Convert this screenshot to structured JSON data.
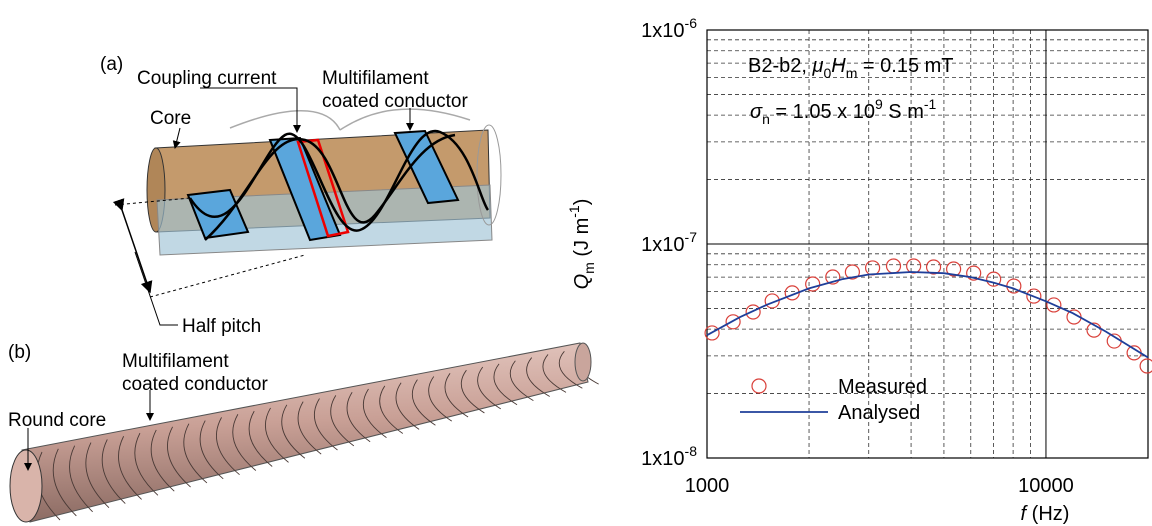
{
  "diagram": {
    "panel_a": {
      "label": "(a)",
      "coupling_current": "Coupling current",
      "conductor": [
        "Multifilament",
        "coated conductor"
      ],
      "core": "Core",
      "half_pitch": "Half pitch"
    },
    "panel_b": {
      "label": "(b)",
      "conductor": [
        "Multifilament",
        "coated conductor"
      ],
      "core": "Round core"
    }
  },
  "chart_data": {
    "type": "line",
    "x_label_parts": [
      "f",
      " (Hz)"
    ],
    "y_label_parts": [
      "Q",
      "m",
      " (J m",
      "-1",
      ")"
    ],
    "annotations": [
      [
        "B2-b2, ",
        "μ",
        "0",
        "H",
        "m",
        " = 0.15 mT"
      ],
      [
        "σ",
        "n",
        " = 1.05 x 10",
        "9",
        " S m",
        "-1"
      ]
    ],
    "log_x": true,
    "log_y": true,
    "grid": true,
    "xlim": [
      1000,
      20000
    ],
    "ylim": [
      1e-08,
      1e-06
    ],
    "xticks": [
      1000,
      10000
    ],
    "yticks": [
      {
        "value": 1e-08,
        "label": "1x10-8"
      },
      {
        "value": 1e-07,
        "label": "1x10-7"
      },
      {
        "value": 1e-06,
        "label": "1x10-6"
      }
    ],
    "x_minor_ticks": [
      2000,
      3000,
      4000,
      5000,
      6000,
      7000,
      8000,
      9000
    ],
    "y_minor_ticks": [
      2e-08,
      3e-08,
      4e-08,
      5e-08,
      6e-08,
      7e-08,
      8e-08,
      9e-08,
      2e-07,
      3e-07,
      4e-07,
      5e-07,
      6e-07,
      7e-07,
      8e-07,
      9e-07
    ],
    "series": [
      {
        "name": "Measured",
        "style": "marker",
        "color": "#d9403a",
        "x": [
          1035,
          1194,
          1368,
          1557,
          1784,
          2050,
          2350,
          2685,
          3080,
          3550,
          4070,
          4660,
          5340,
          6120,
          7010,
          8040,
          9210,
          10550,
          12100,
          13860,
          15900,
          18200,
          19880
        ],
        "values": [
          3.84e-08,
          4.33e-08,
          4.81e-08,
          5.42e-08,
          5.91e-08,
          6.5e-08,
          7.01e-08,
          7.4e-08,
          7.73e-08,
          7.89e-08,
          7.89e-08,
          7.81e-08,
          7.64e-08,
          7.31e-08,
          6.85e-08,
          6.36e-08,
          5.71e-08,
          5.19e-08,
          4.56e-08,
          3.96e-08,
          3.52e-08,
          3.1e-08,
          2.69e-08
        ]
      },
      {
        "name": "Analysed",
        "style": "line",
        "color": "#1f3f9a",
        "x": [
          1000,
          1250,
          1500,
          2000,
          2500,
          3000,
          4000,
          5000,
          6000,
          7000,
          8000,
          10000,
          12000,
          15000,
          20000
        ],
        "values": [
          3.75e-08,
          4.55e-08,
          5.2e-08,
          6.2e-08,
          6.85e-08,
          7.2e-08,
          7.4e-08,
          7.3e-08,
          7e-08,
          6.6e-08,
          6.2e-08,
          5.4e-08,
          4.75e-08,
          3.9e-08,
          2.95e-08
        ]
      }
    ]
  }
}
